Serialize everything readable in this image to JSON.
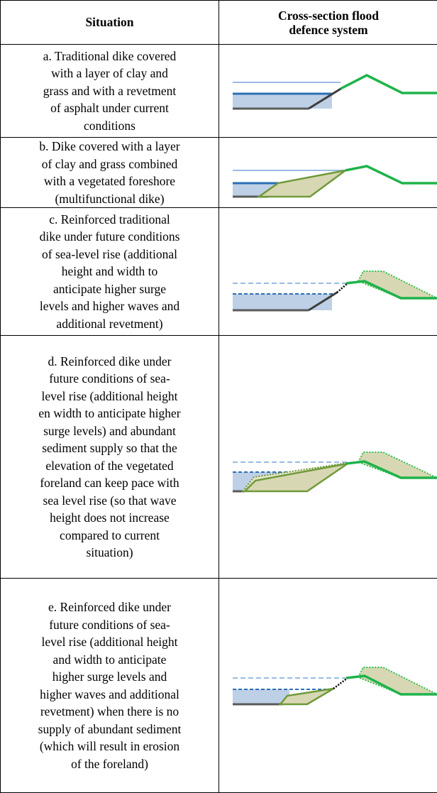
{
  "header": {
    "situation": "Situation",
    "cross_section": [
      "Cross-section flood",
      "defence system"
    ]
  },
  "rows": [
    {
      "lines": [
        "a. Traditional dike covered",
        "with a layer of clay and",
        "grass and with a revetment",
        "of asphalt under current",
        "conditions"
      ]
    },
    {
      "lines": [
        "b. Dike covered with a layer",
        "of clay and grass combined",
        "with a vegetated foreshore",
        "(multifunctional dike)"
      ]
    },
    {
      "lines": [
        "c. Reinforced traditional",
        "dike under future conditions",
        "of sea-level rise (additional",
        "height and width to",
        "anticipate higher surge",
        "levels and higher waves and",
        "additional revetment)"
      ]
    },
    {
      "lines": [
        "d. Reinforced dike under",
        "future conditions of sea-",
        "level rise (additional height",
        "en width to anticipate higher",
        "surge levels) and abundant",
        "sediment supply so that the",
        "elevation of the vegetated",
        "foreland can keep pace with",
        "sea level rise (so that wave",
        "height does not increase",
        "compared to current",
        "situation)"
      ]
    },
    {
      "lines": [
        "e. Reinforced dike under",
        "future conditions of sea-",
        "level rise (additional height",
        "and width to anticipate",
        "higher surge levels and",
        "higher waves and additional",
        "revetment) when there is no",
        "supply of abundant sediment",
        "(which will result in erosion",
        "of the foreland)"
      ]
    }
  ]
}
